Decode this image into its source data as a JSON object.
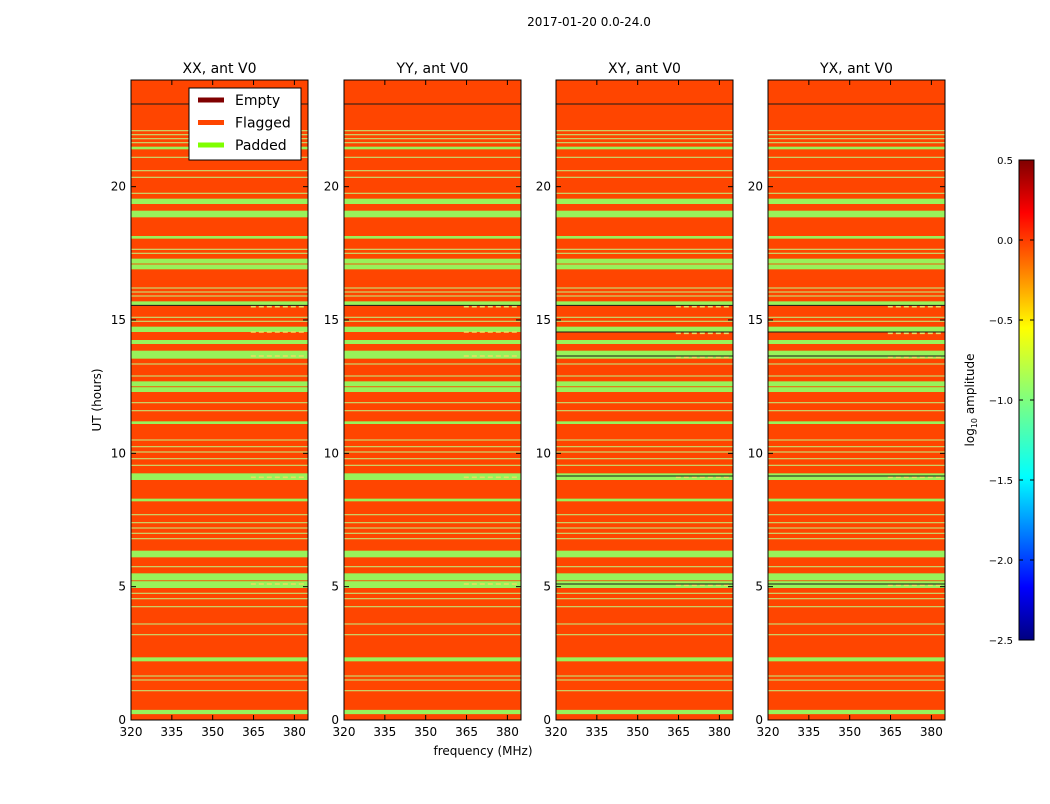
{
  "chart_data": {
    "type": "heatmap",
    "title": "2017-01-20 0.0-24.0",
    "xlabel": "frequency (MHz)",
    "ylabel": "UT (hours)",
    "xlim": [
      320,
      385
    ],
    "ylim": [
      0,
      24
    ],
    "x_ticks": [
      320,
      335,
      350,
      365,
      380
    ],
    "y_ticks": [
      0,
      5,
      10,
      15,
      20
    ],
    "panels": [
      {
        "title": "XX, ant V0",
        "dark_lines": [
          23.1,
          15.55
        ],
        "notch_rows": [
          15.5,
          14.55,
          13.65,
          9.1,
          5.1
        ]
      },
      {
        "title": "YY, ant V0",
        "dark_lines": [
          23.1,
          15.55
        ],
        "notch_rows": [
          15.5,
          14.55,
          13.65,
          9.1,
          5.1
        ]
      },
      {
        "title": "XY, ant V0",
        "dark_lines": [
          23.1,
          15.55,
          14.55,
          13.65,
          9.15,
          5.1
        ],
        "notch_rows": [
          15.5,
          14.5,
          13.6,
          9.1,
          5.05
        ]
      },
      {
        "title": "YX, ant V0",
        "dark_lines": [
          23.1,
          15.55,
          14.55,
          13.65,
          9.15,
          5.1
        ],
        "notch_rows": [
          15.5,
          14.5,
          13.6,
          9.1,
          5.05
        ]
      }
    ],
    "padded_bands": [
      [
        0.22,
        0.38
      ],
      [
        2.2,
        2.35
      ],
      [
        4.95,
        5.5
      ],
      [
        6.1,
        6.35
      ],
      [
        8.2,
        8.3
      ],
      [
        9.0,
        9.25
      ],
      [
        11.1,
        11.2
      ],
      [
        12.3,
        12.7
      ],
      [
        13.55,
        13.85
      ],
      [
        14.1,
        14.25
      ],
      [
        14.55,
        14.75
      ],
      [
        15.55,
        15.7
      ],
      [
        16.9,
        17.3
      ],
      [
        18.05,
        18.15
      ],
      [
        18.85,
        19.1
      ],
      [
        19.35,
        19.55
      ],
      [
        21.4,
        21.5
      ]
    ],
    "padded_thin_lines": [
      1.1,
      1.5,
      1.65,
      3.2,
      3.6,
      4.25,
      4.55,
      4.75,
      5.75,
      6.8,
      7.0,
      7.2,
      7.4,
      7.7,
      9.55,
      9.8,
      10.05,
      10.25,
      10.5,
      11.6,
      11.9,
      12.9,
      13.35,
      14.95,
      15.1,
      15.9,
      16.05,
      16.2,
      17.5,
      17.65,
      19.75,
      20.35,
      20.6,
      21.1,
      21.65,
      21.8,
      21.95,
      22.1
    ],
    "legend": {
      "position": "upper-right of first panel",
      "entries": [
        {
          "label": "Empty",
          "color": "#800000"
        },
        {
          "label": "Flagged",
          "color": "#ff4500"
        },
        {
          "label": "Padded",
          "color": "#7fff00"
        }
      ]
    },
    "colorbar": {
      "label_prefix": "log",
      "label_sub": "10",
      "label_suffix": " amplitude",
      "range": [
        -2.5,
        0.5
      ],
      "ticks": [
        -2.5,
        -2.0,
        -1.5,
        -1.0,
        -0.5,
        0.0,
        0.5
      ],
      "tick_labels": [
        "−2.5",
        "−2.0",
        "−1.5",
        "−1.0",
        "−0.5",
        "0.0",
        "0.5"
      ],
      "colormap": "jet"
    },
    "colors": {
      "flagged": "#ff4500",
      "padded": "#98f25a",
      "padded_thin": "#c8d86a",
      "dark_line": "#1a1a1a",
      "axis": "#000000"
    }
  }
}
